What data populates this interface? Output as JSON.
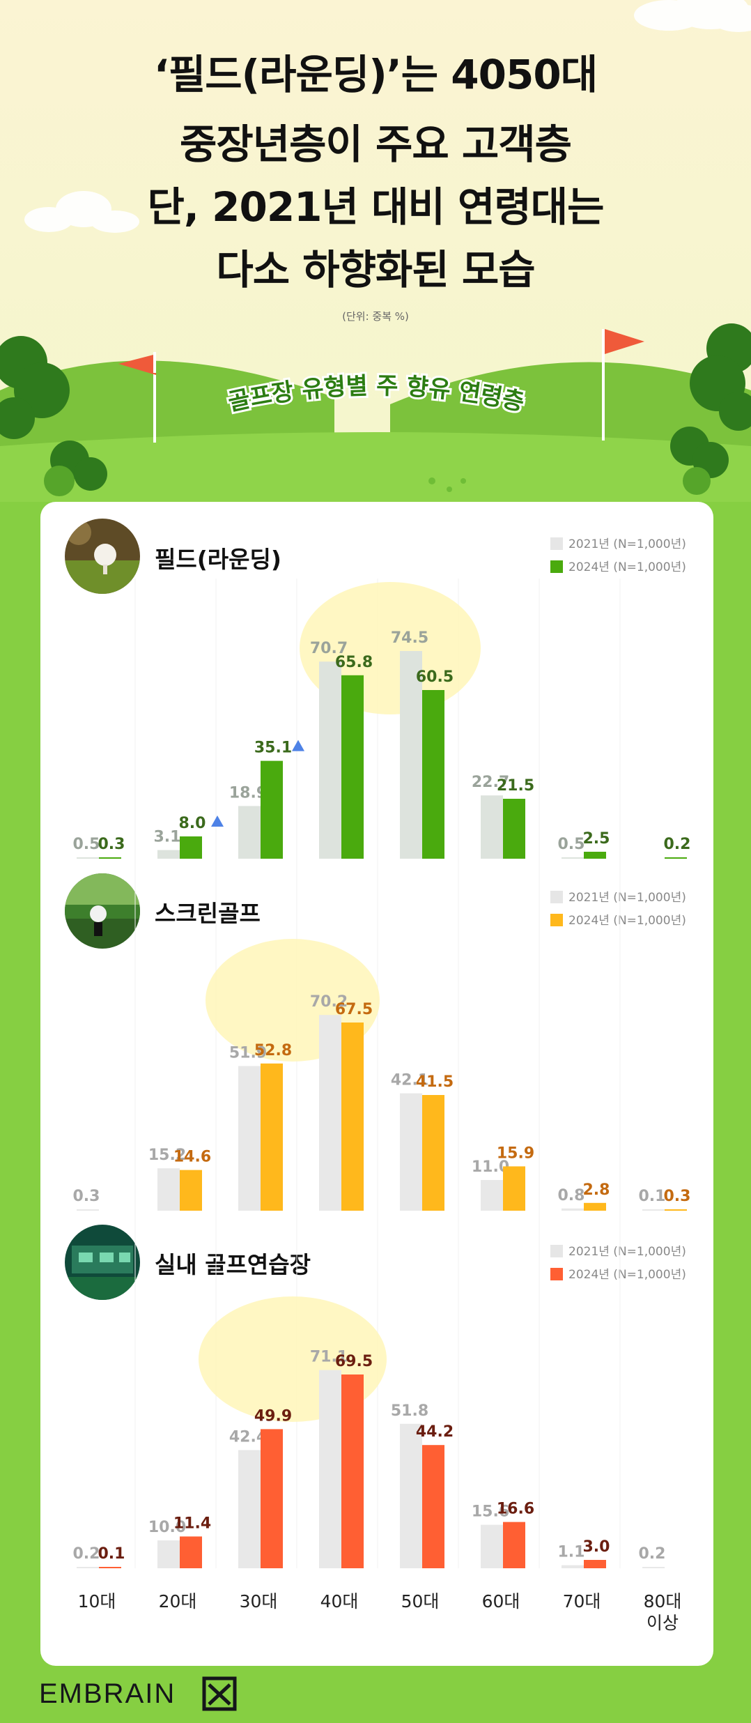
{
  "header": {
    "title_lines": [
      "‘필드(라운딩)’는 4050대",
      "중장년층이 주요 고객층",
      "단, 2021년 대비 연령대는",
      "다소 하향화된 모습"
    ],
    "unit_note": "(단위: 중복 %)",
    "banner": "골프장 유형별 주 향유 연령층"
  },
  "legend": {
    "y2021": "2021년 (N=1,000년)",
    "y2024": "2024년 (N=1,000년)"
  },
  "colors": {
    "bg_green": "#86cf42",
    "bar_2021_field": "#dde3dd",
    "bar_2021": "#e8e8e8",
    "field_2024": "#4aaa0e",
    "screen_2024": "#ffb81c",
    "indoor_2024": "#ff5f33"
  },
  "chart_data": [
    {
      "type": "bar",
      "title": "필드(라운딩)",
      "categories": [
        "10대",
        "20대",
        "30대",
        "40대",
        "50대",
        "60대",
        "70대",
        "80대 이상"
      ],
      "series": [
        {
          "name": "2021년 (N=1,000년)",
          "values": [
            0.5,
            3.1,
            18.9,
            70.7,
            74.5,
            22.7,
            0.5,
            null
          ]
        },
        {
          "name": "2024년 (N=1,000년)",
          "values": [
            0.3,
            8.0,
            35.1,
            65.8,
            60.5,
            21.5,
            2.5,
            0.2
          ]
        }
      ],
      "increase_markers": [
        "20대",
        "30대"
      ],
      "highlighted": [
        "40대",
        "50대"
      ]
    },
    {
      "type": "bar",
      "title": "스크린골프",
      "categories": [
        "10대",
        "20대",
        "30대",
        "40대",
        "50대",
        "60대",
        "70대",
        "80대 이상"
      ],
      "series": [
        {
          "name": "2021년 (N=1,000년)",
          "values": [
            0.3,
            15.2,
            51.9,
            70.2,
            42.1,
            11.0,
            0.8,
            0.1
          ]
        },
        {
          "name": "2024년 (N=1,000년)",
          "values": [
            null,
            14.6,
            52.8,
            67.5,
            41.5,
            15.9,
            2.8,
            0.3
          ]
        }
      ],
      "highlighted": [
        "30대",
        "40대"
      ]
    },
    {
      "type": "bar",
      "title": "실내 골프연습장",
      "categories": [
        "10대",
        "20대",
        "30대",
        "40대",
        "50대",
        "60대",
        "70대",
        "80대 이상"
      ],
      "series": [
        {
          "name": "2021년 (N=1,000년)",
          "values": [
            0.2,
            10.0,
            42.4,
            71.1,
            51.8,
            15.6,
            1.1,
            0.2
          ]
        },
        {
          "name": "2024년 (N=1,000년)",
          "values": [
            0.1,
            11.4,
            49.9,
            69.5,
            44.2,
            16.6,
            3.0,
            null
          ]
        }
      ],
      "highlighted": [
        "30대",
        "40대"
      ]
    }
  ],
  "x_axis_labels": [
    "10대",
    "20대",
    "30대",
    "40대",
    "50대",
    "60대",
    "70대",
    "80대\n이상"
  ],
  "footer": {
    "brand": "EMBRAIN"
  }
}
